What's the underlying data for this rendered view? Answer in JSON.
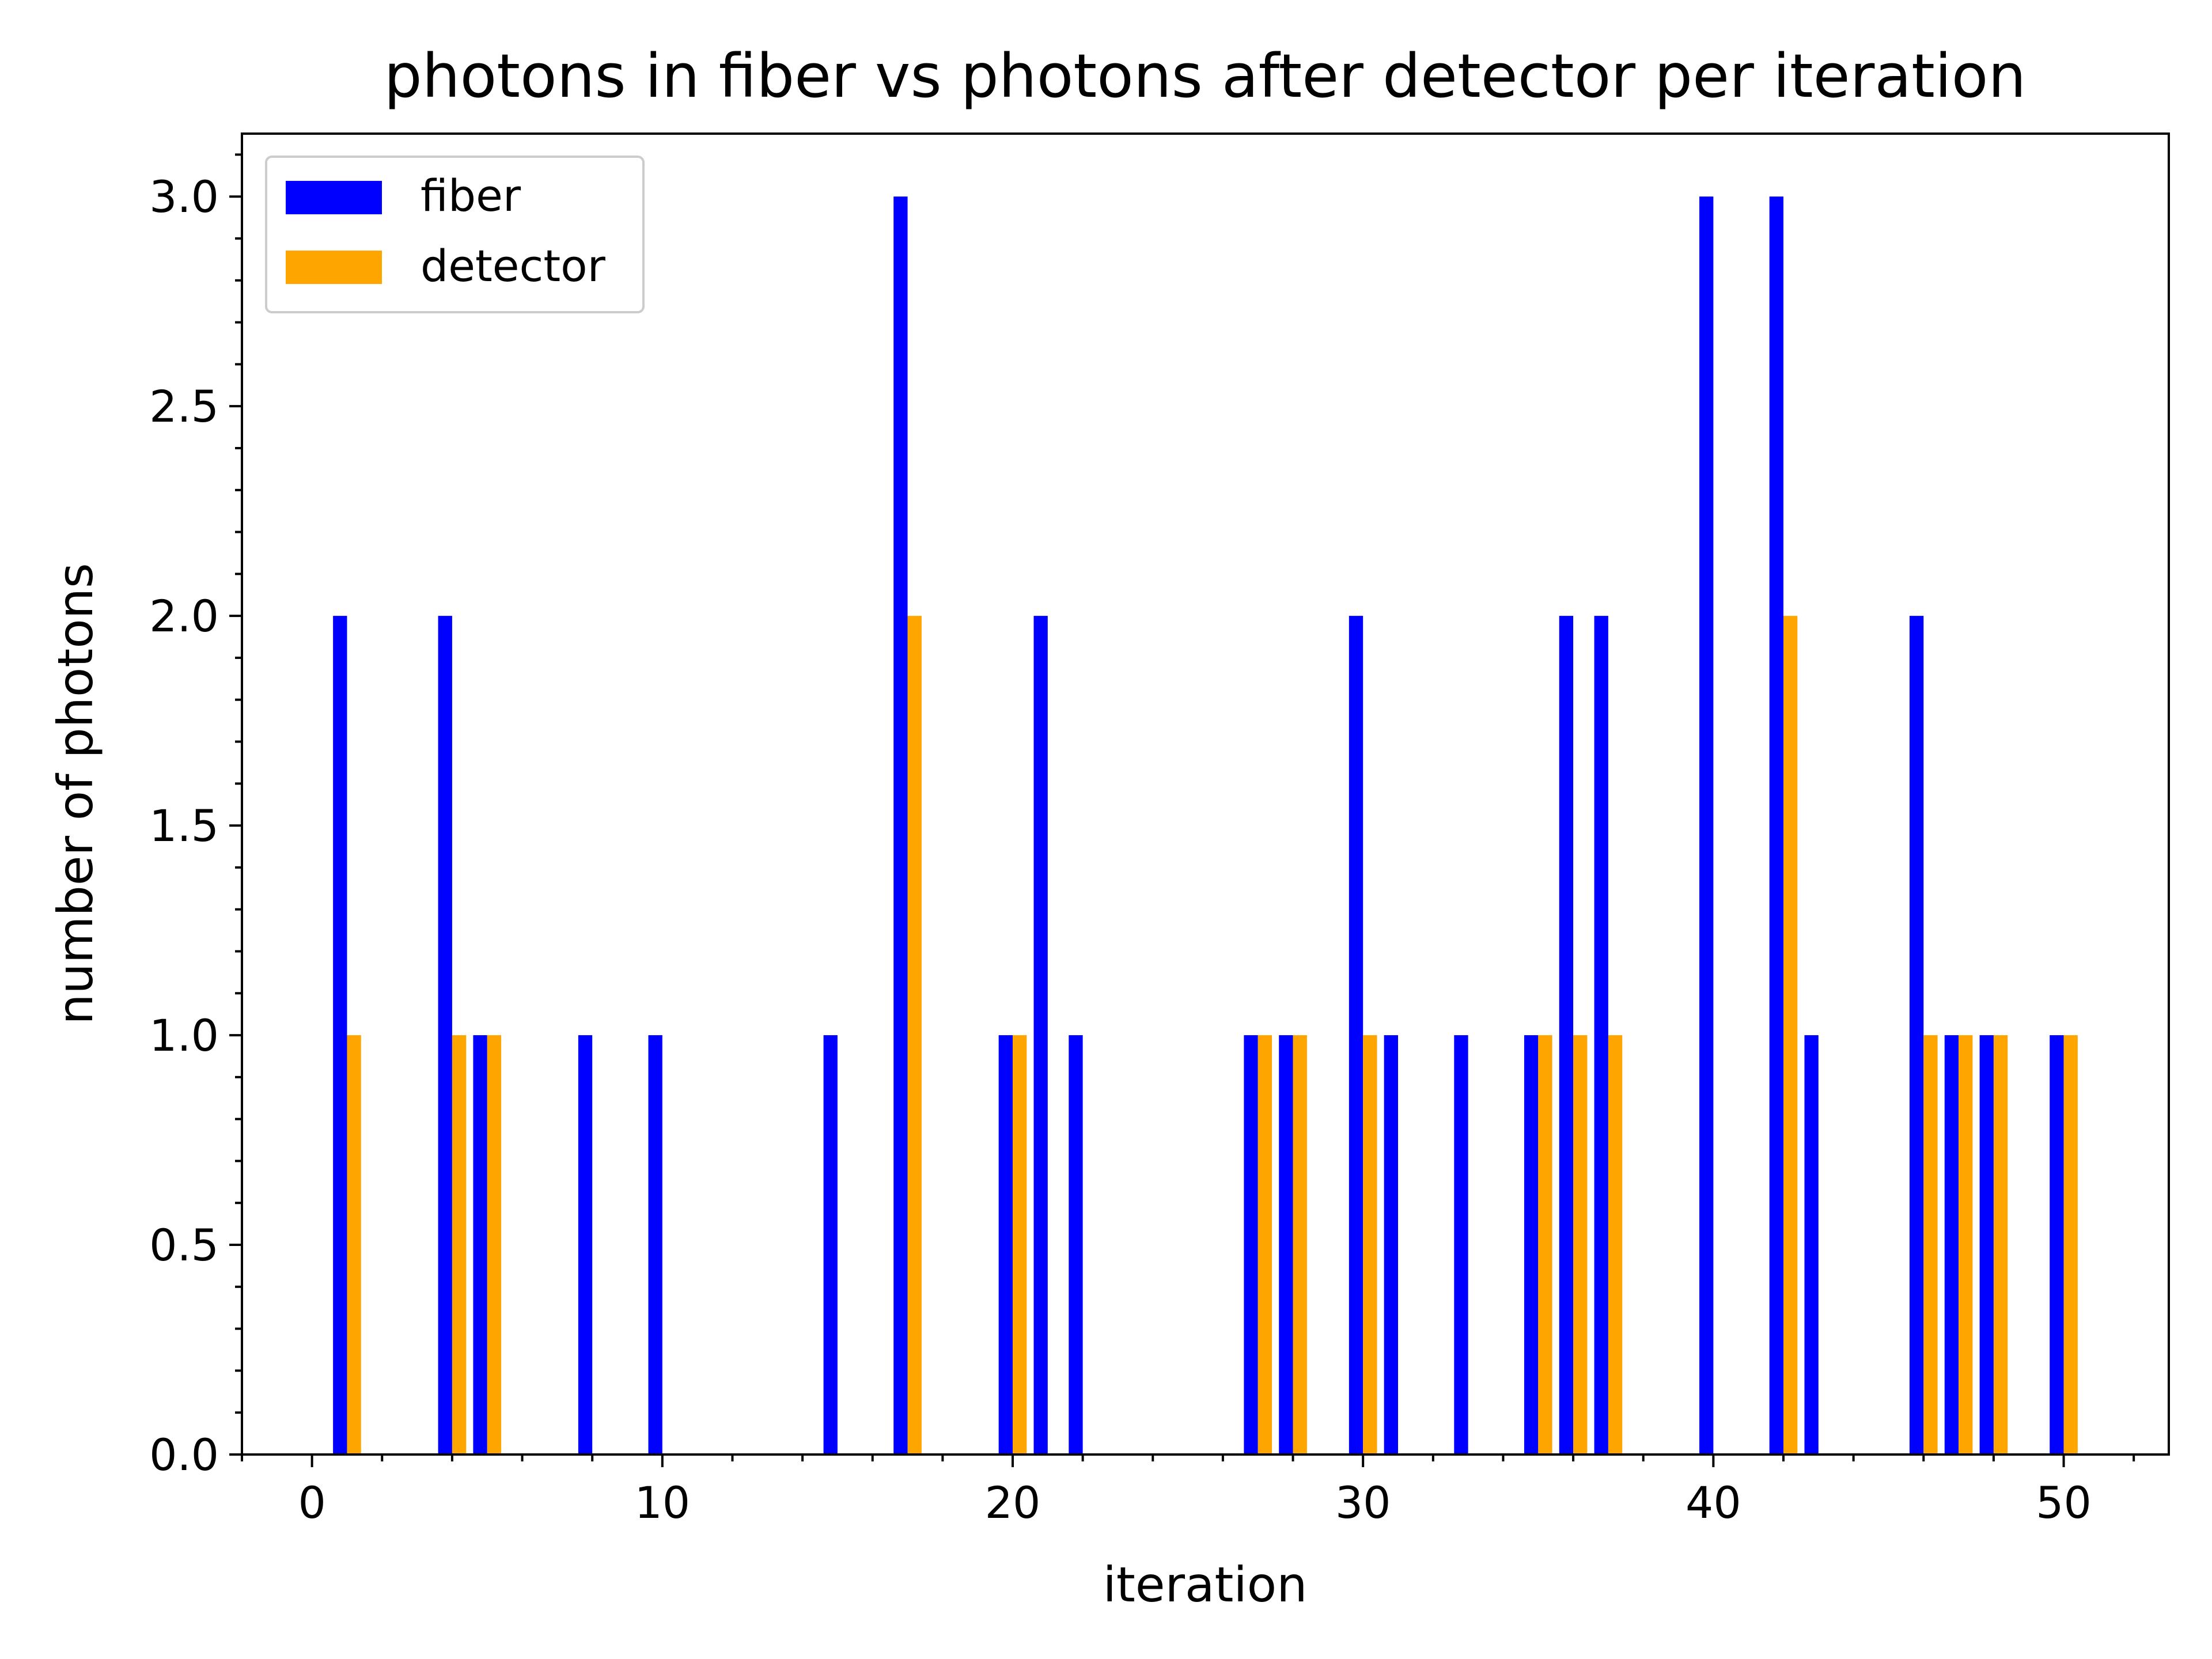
{
  "chart_data": {
    "type": "bar",
    "title": "photons in fiber vs photons after detector per iteration",
    "xlabel": "iteration",
    "ylabel": "number of photons",
    "xlim": [
      -2,
      53
    ],
    "ylim": [
      0,
      3.15
    ],
    "x_ticks": [
      0,
      10,
      20,
      30,
      40,
      50
    ],
    "x_tick_labels": [
      "0",
      "10",
      "20",
      "30",
      "40",
      "50"
    ],
    "y_ticks": [
      0,
      0.5,
      1,
      1.5,
      2,
      2.5,
      3
    ],
    "y_tick_labels": [
      "0.0",
      "0.5",
      "1.0",
      "1.5",
      "2.0",
      "2.5",
      "3.0"
    ],
    "grid": false,
    "legend_position": "top-left",
    "series": [
      {
        "name": "fiber",
        "color": "#0000ff",
        "points": [
          {
            "x": 1,
            "y": 2
          },
          {
            "x": 4,
            "y": 2
          },
          {
            "x": 5,
            "y": 1
          },
          {
            "x": 8,
            "y": 1
          },
          {
            "x": 10,
            "y": 1
          },
          {
            "x": 15,
            "y": 1
          },
          {
            "x": 17,
            "y": 3
          },
          {
            "x": 20,
            "y": 1
          },
          {
            "x": 21,
            "y": 2
          },
          {
            "x": 22,
            "y": 1
          },
          {
            "x": 27,
            "y": 1
          },
          {
            "x": 28,
            "y": 1
          },
          {
            "x": 30,
            "y": 2
          },
          {
            "x": 31,
            "y": 1
          },
          {
            "x": 33,
            "y": 1
          },
          {
            "x": 35,
            "y": 1
          },
          {
            "x": 36,
            "y": 2
          },
          {
            "x": 37,
            "y": 2
          },
          {
            "x": 40,
            "y": 3
          },
          {
            "x": 42,
            "y": 3
          },
          {
            "x": 43,
            "y": 1
          },
          {
            "x": 46,
            "y": 2
          },
          {
            "x": 47,
            "y": 1
          },
          {
            "x": 48,
            "y": 1
          },
          {
            "x": 50,
            "y": 1
          }
        ]
      },
      {
        "name": "detector",
        "color": "#ffa500",
        "points": [
          {
            "x": 1,
            "y": 1
          },
          {
            "x": 4,
            "y": 1
          },
          {
            "x": 5,
            "y": 1
          },
          {
            "x": 17,
            "y": 2
          },
          {
            "x": 20,
            "y": 1
          },
          {
            "x": 27,
            "y": 1
          },
          {
            "x": 28,
            "y": 1
          },
          {
            "x": 30,
            "y": 1
          },
          {
            "x": 35,
            "y": 1
          },
          {
            "x": 36,
            "y": 1
          },
          {
            "x": 37,
            "y": 1
          },
          {
            "x": 42,
            "y": 2
          },
          {
            "x": 46,
            "y": 1
          },
          {
            "x": 47,
            "y": 1
          },
          {
            "x": 48,
            "y": 1
          },
          {
            "x": 50,
            "y": 1
          }
        ]
      }
    ]
  }
}
